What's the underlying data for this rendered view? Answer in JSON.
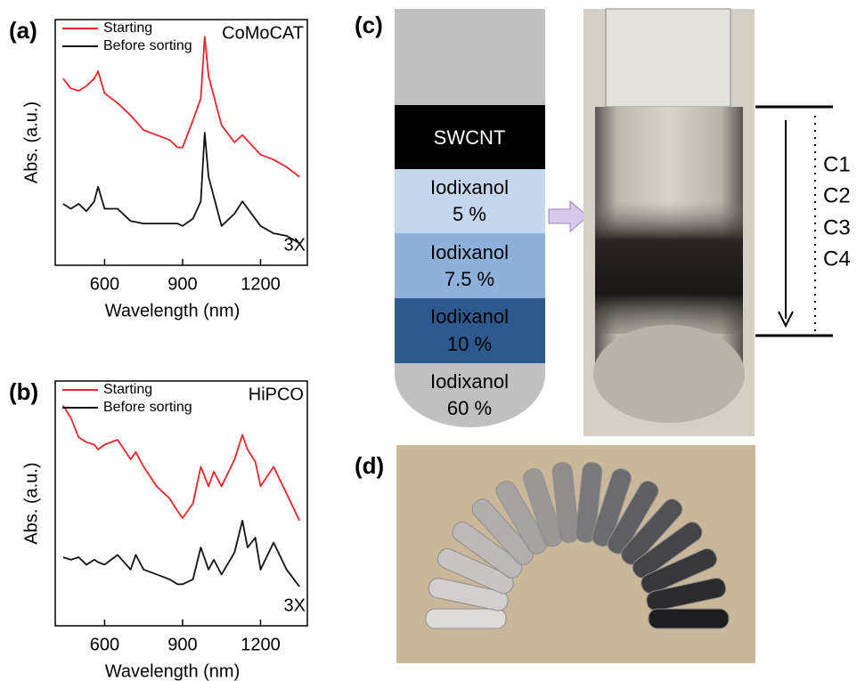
{
  "chart_data": [
    {
      "type": "line",
      "panel_label": "(a)",
      "annotation": "CoMoCAT",
      "scale_note": "3X",
      "x_label": "Wavelength (nm)",
      "y_label": "Abs. (a.u.)",
      "x": [
        440,
        470,
        500,
        530,
        560,
        575,
        600,
        650,
        700,
        750,
        800,
        850,
        880,
        900,
        940,
        970,
        985,
        1000,
        1050,
        1100,
        1130,
        1200,
        1250,
        1300,
        1350
      ],
      "series": [
        {
          "name": "Starting",
          "color": "#e8262b",
          "values": [
            0.76,
            0.72,
            0.71,
            0.73,
            0.76,
            0.79,
            0.7,
            0.66,
            0.61,
            0.55,
            0.53,
            0.51,
            0.48,
            0.48,
            0.59,
            0.68,
            0.93,
            0.77,
            0.57,
            0.5,
            0.53,
            0.45,
            0.43,
            0.4,
            0.36
          ]
        },
        {
          "name": "Before sorting",
          "color": "#111111",
          "values": [
            0.25,
            0.23,
            0.25,
            0.22,
            0.26,
            0.32,
            0.23,
            0.23,
            0.18,
            0.17,
            0.17,
            0.17,
            0.17,
            0.16,
            0.19,
            0.26,
            0.54,
            0.36,
            0.16,
            0.21,
            0.26,
            0.16,
            0.13,
            0.12,
            0.09
          ]
        }
      ],
      "xlim": [
        410,
        1380
      ],
      "xticks": [
        600,
        900,
        1200
      ],
      "ylim": [
        0,
        1
      ]
    },
    {
      "type": "line",
      "panel_label": "(b)",
      "annotation": "HiPCO",
      "scale_note": "3X",
      "x_label": "Wavelength (nm)",
      "y_label": "Abs. (a.u.)",
      "x": [
        440,
        470,
        500,
        530,
        560,
        575,
        600,
        650,
        700,
        720,
        750,
        800,
        850,
        880,
        900,
        940,
        970,
        1000,
        1020,
        1050,
        1100,
        1130,
        1150,
        1180,
        1200,
        1250,
        1300,
        1350
      ],
      "series": [
        {
          "name": "Starting",
          "color": "#e8262b",
          "values": [
            0.9,
            0.85,
            0.77,
            0.75,
            0.74,
            0.72,
            0.74,
            0.76,
            0.68,
            0.71,
            0.65,
            0.57,
            0.52,
            0.47,
            0.44,
            0.5,
            0.65,
            0.57,
            0.63,
            0.57,
            0.68,
            0.78,
            0.72,
            0.67,
            0.57,
            0.65,
            0.54,
            0.43
          ]
        },
        {
          "name": "Before sorting",
          "color": "#111111",
          "values": [
            0.28,
            0.27,
            0.28,
            0.25,
            0.27,
            0.26,
            0.25,
            0.29,
            0.23,
            0.29,
            0.23,
            0.21,
            0.19,
            0.17,
            0.17,
            0.19,
            0.32,
            0.23,
            0.27,
            0.21,
            0.3,
            0.43,
            0.32,
            0.36,
            0.23,
            0.34,
            0.23,
            0.16
          ]
        }
      ],
      "xlim": [
        410,
        1380
      ],
      "xticks": [
        600,
        900,
        1200
      ],
      "ylim": [
        0,
        1
      ]
    }
  ],
  "panel_c": {
    "label": "(c)",
    "top_layer": "SWCNT",
    "layers": [
      {
        "name": "Iodixanol",
        "conc": "5 %"
      },
      {
        "name": "Iodixanol",
        "conc": "7.5 %"
      },
      {
        "name": "Iodixanol",
        "conc": "10 %"
      },
      {
        "name": "Iodixanol",
        "conc": "60 %"
      }
    ],
    "fractions": [
      "C1",
      "C2",
      "C3",
      "C4"
    ]
  },
  "panel_d": {
    "label": "(d)"
  }
}
